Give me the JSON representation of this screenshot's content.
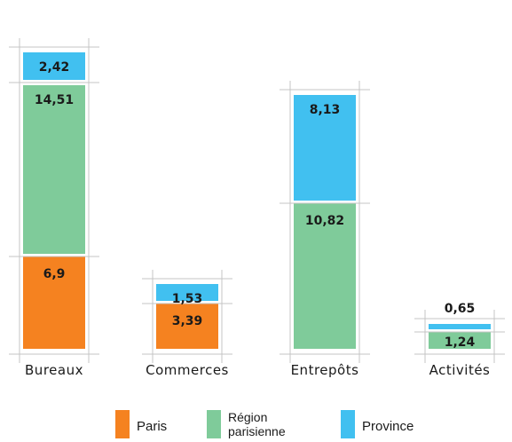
{
  "chart_data": {
    "type": "bar",
    "stacked": true,
    "categories": [
      "Bureaux",
      "Commerces",
      "Entrepôts",
      "Activités"
    ],
    "series": [
      {
        "name": "Paris",
        "color": "#f58220",
        "values": [
          6.9,
          3.39,
          null,
          null
        ],
        "labels": [
          "6,9",
          "3,39",
          "",
          ""
        ]
      },
      {
        "name": "Région parisienne",
        "color": "#7fcb9a",
        "values": [
          14.51,
          null,
          10.82,
          1.24
        ],
        "labels": [
          "14,51",
          "",
          "10,82",
          "1,24"
        ]
      },
      {
        "name": "Province",
        "color": "#41c0f0",
        "values": [
          2.42,
          1.53,
          8.13,
          0.65
        ],
        "labels": [
          "2,42",
          "1,53",
          "8,13",
          "0,65"
        ]
      }
    ],
    "legend": {
      "position": "bottom",
      "items": [
        {
          "label_lines": [
            "Paris"
          ],
          "color": "#f58220"
        },
        {
          "label_lines": [
            "Région",
            "parisienne"
          ],
          "color": "#7fcb9a"
        },
        {
          "label_lines": [
            "Province"
          ],
          "color": "#41c0f0"
        }
      ]
    },
    "grid": false
  }
}
